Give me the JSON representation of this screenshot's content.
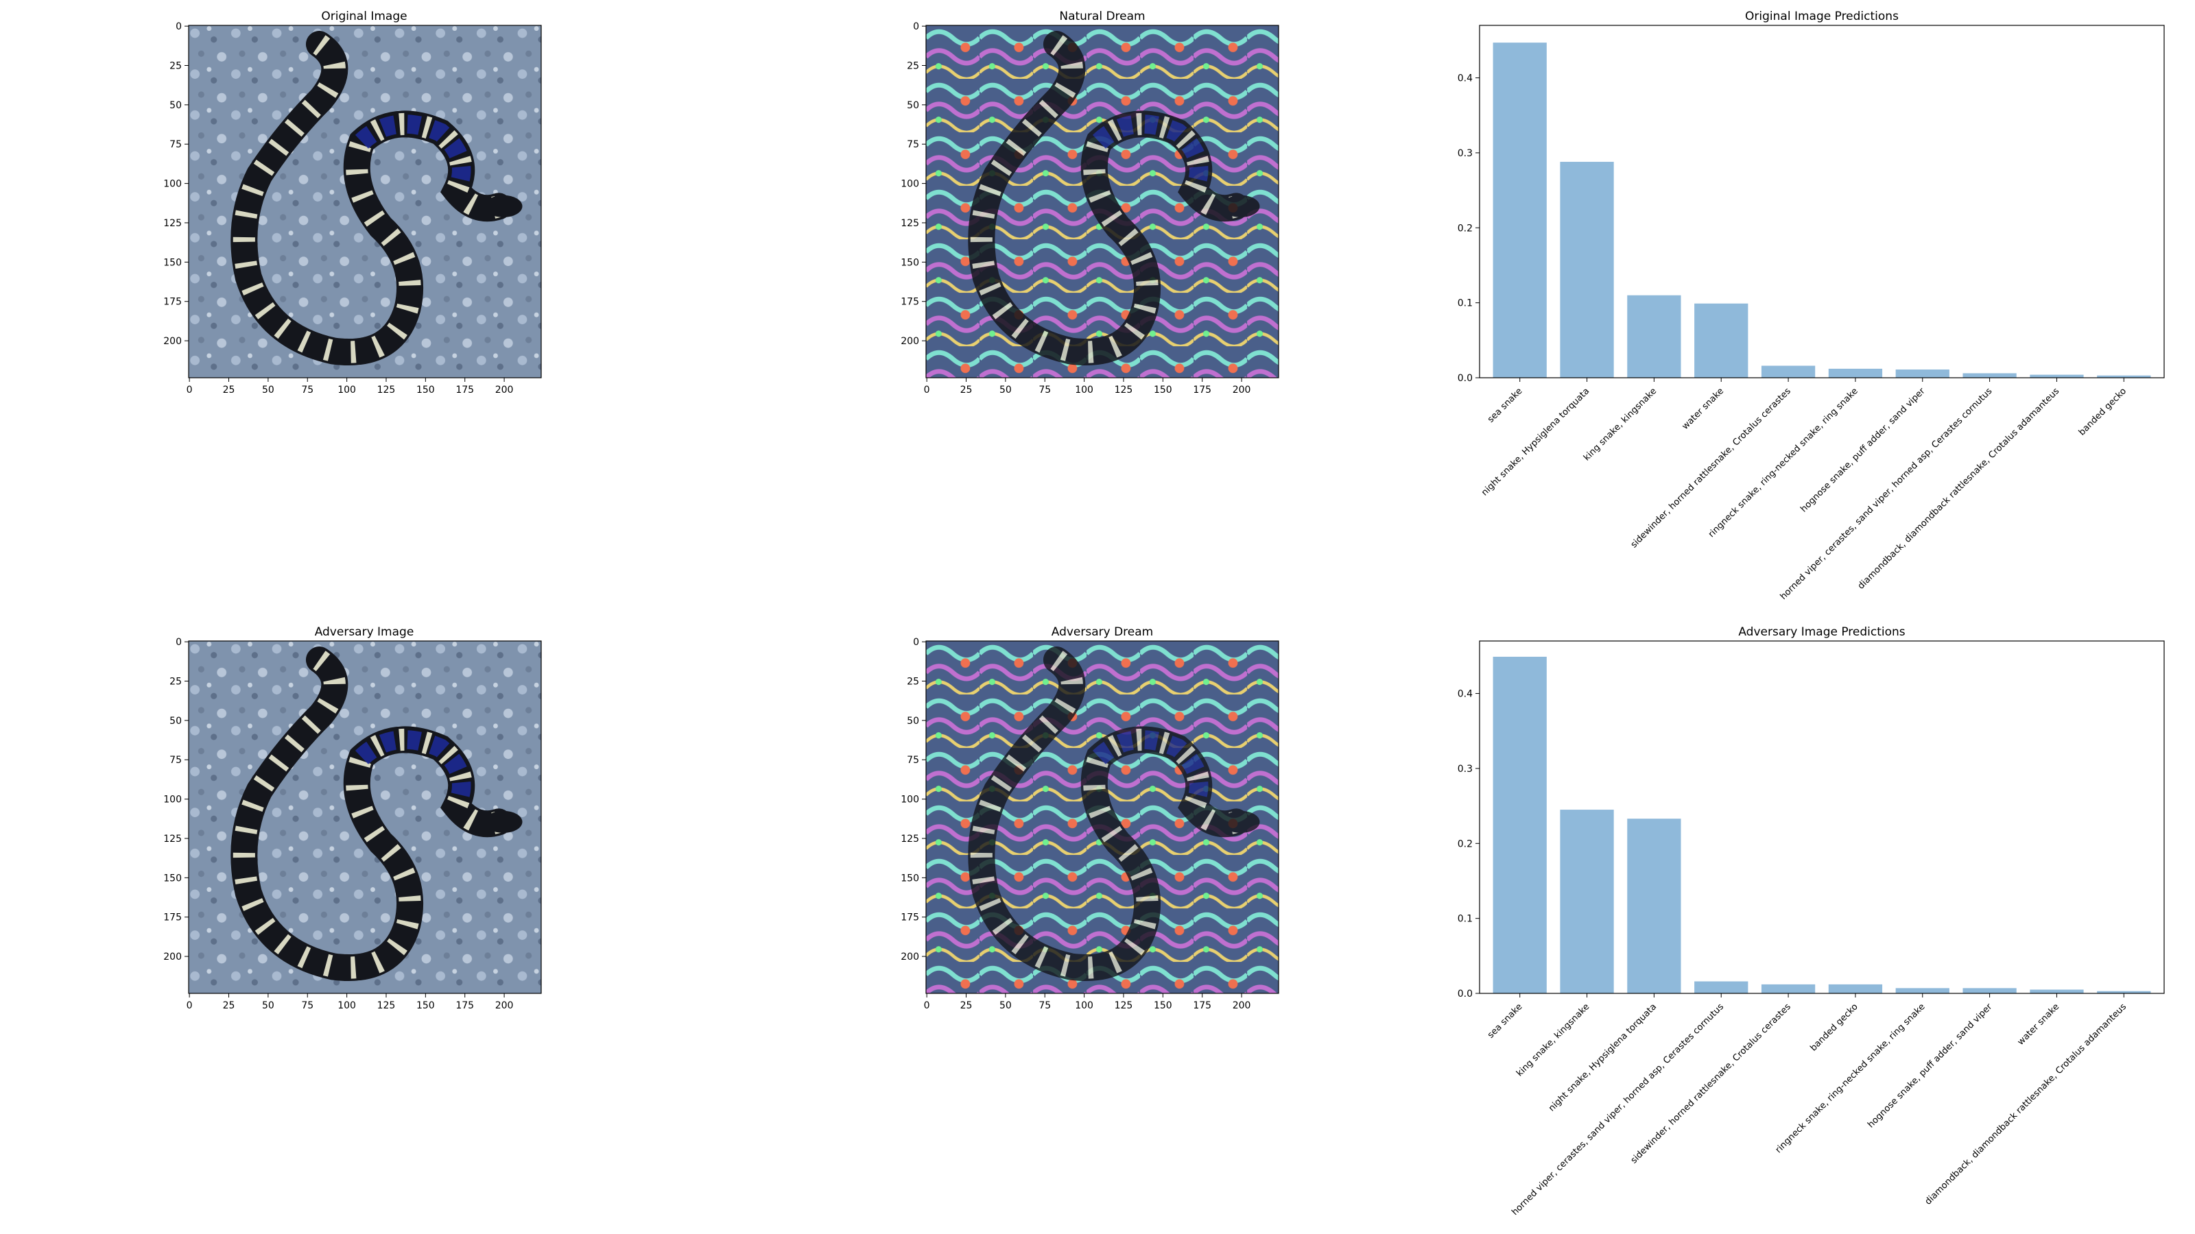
{
  "panels": {
    "original_image": {
      "title": "Original Image"
    },
    "natural_dream": {
      "title": "Natural Dream"
    },
    "adversary_image": {
      "title": "Adversary Image"
    },
    "adversary_dream": {
      "title": "Adversary Dream"
    }
  },
  "image_axes": {
    "x_ticks": [
      0,
      25,
      50,
      75,
      100,
      125,
      150,
      175,
      200
    ],
    "y_ticks": [
      0,
      25,
      50,
      75,
      100,
      125,
      150,
      175,
      200
    ],
    "extent": 224
  },
  "colors": {
    "bar": "#8fb9da",
    "gravel": "#7f93ad",
    "snake_black": "#14161c",
    "snake_blue": "#1c2a9a",
    "band": "#d8d8c2"
  },
  "chart_data": [
    {
      "type": "bar",
      "title": "Original Image Predictions",
      "categories": [
        "sea snake",
        "night snake, Hypsiglena torquata",
        "king snake, kingsnake",
        "water snake",
        "sidewinder, horned rattlesnake, Crotalus cerastes",
        "ringneck snake, ring-necked snake, ring snake",
        "hognose snake, puff adder, sand viper",
        "horned viper, cerastes, sand viper, horned asp, Cerastes cornutus",
        "diamondback, diamondback rattlesnake, Crotalus adamanteus",
        "banded gecko"
      ],
      "values": [
        0.447,
        0.288,
        0.11,
        0.099,
        0.016,
        0.012,
        0.011,
        0.006,
        0.004,
        0.003
      ],
      "ylim": [
        0,
        0.47
      ],
      "yticks": [
        "0.0",
        "0.1",
        "0.2",
        "0.3",
        "0.4"
      ]
    },
    {
      "type": "bar",
      "title": "Adversary Image Predictions",
      "categories": [
        "sea snake",
        "king snake, kingsnake",
        "night snake, Hypsiglena torquata",
        "horned viper, cerastes, sand viper, horned asp, Cerastes cornutus",
        "sidewinder, horned rattlesnake, Crotalus cerastes",
        "banded gecko",
        "ringneck snake, ring-necked snake, ring snake",
        "hognose snake, puff adder, sand viper",
        "water snake",
        "diamondback, diamondback rattlesnake, Crotalus adamanteus"
      ],
      "values": [
        0.449,
        0.245,
        0.233,
        0.016,
        0.012,
        0.012,
        0.007,
        0.007,
        0.005,
        0.003
      ],
      "ylim": [
        0,
        0.47
      ],
      "yticks": [
        "0.0",
        "0.1",
        "0.2",
        "0.3",
        "0.4"
      ]
    }
  ]
}
